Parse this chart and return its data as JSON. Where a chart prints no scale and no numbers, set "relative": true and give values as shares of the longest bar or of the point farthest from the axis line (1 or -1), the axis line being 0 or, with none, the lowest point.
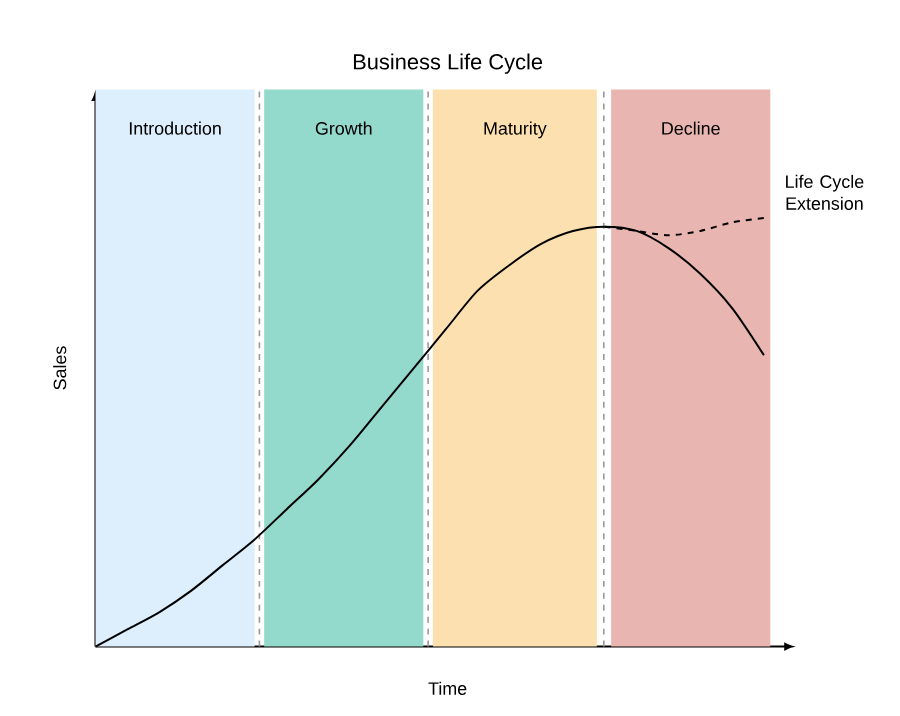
{
  "chart_data": {
    "type": "line",
    "title": "Business Life Cycle",
    "xlabel": "Time",
    "ylabel": "Sales",
    "relative": true,
    "categories": [
      null,
      null,
      null,
      null,
      null,
      null,
      null,
      null,
      null,
      null,
      null,
      null,
      null,
      null,
      null,
      null,
      null,
      null,
      null,
      null,
      null,
      null
    ],
    "series": [
      {
        "color": "#000000",
        "line_style": "solid",
        "values": [
          0,
          0.04,
          0.08,
          0.13,
          0.19,
          0.25,
          0.32,
          0.39,
          0.47,
          0.56,
          0.65,
          0.74,
          0.83,
          0.89,
          0.94,
          0.97,
          0.98,
          0.97,
          0.93,
          0.87,
          0.79,
          0.68
        ]
      },
      {
        "color": "#000000",
        "line_style": "dashed",
        "values": [
          null,
          null,
          null,
          null,
          null,
          null,
          null,
          null,
          null,
          null,
          null,
          null,
          null,
          null,
          null,
          null,
          0.98,
          0.97,
          0.96,
          0.97,
          0.99,
          1
        ]
      }
    ],
    "annotations": [
      "Introduction",
      "Growth",
      "Maturity",
      "Decline",
      "Life Cycle Extension"
    ]
  }
}
